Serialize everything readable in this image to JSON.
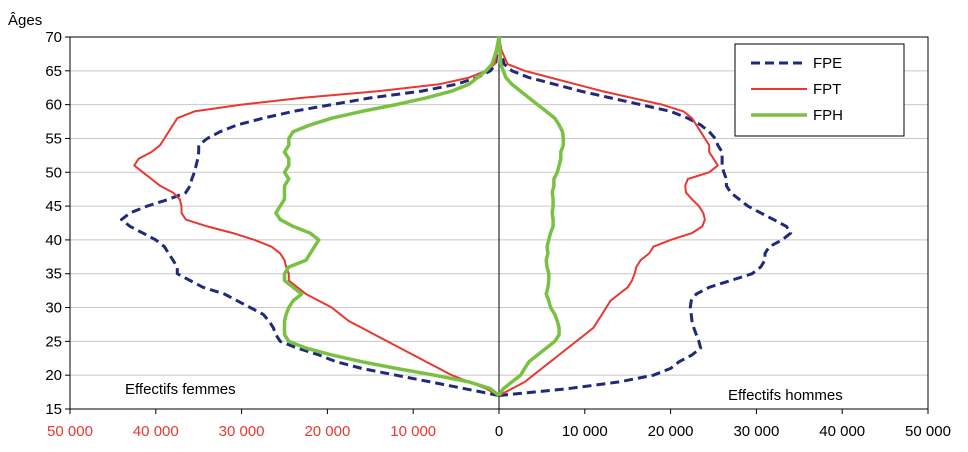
{
  "chart_data": {
    "type": "line",
    "title": "",
    "y_axis": {
      "label": "Âges",
      "min": 15,
      "max": 70,
      "step": 5,
      "tick_labels": [
        "15",
        "20",
        "25",
        "30",
        "35",
        "40",
        "45",
        "50",
        "55",
        "60",
        "65",
        "70"
      ]
    },
    "x_axis": {
      "min": -50000,
      "max": 50000,
      "step": 10000,
      "left_tick_labels": [
        "50 000",
        "40 000",
        "30 000",
        "20 000",
        "10 000"
      ],
      "zero_label": "0",
      "right_tick_labels": [
        "10 000",
        "20 000",
        "30 000",
        "40 000",
        "50 000"
      ]
    },
    "annotations": {
      "left": "Effectifs femmes",
      "right": "Effectifs hommes"
    },
    "legend": {
      "position": "top-right"
    },
    "colors": {
      "FPE": "#1f2a7a",
      "FPT": "#e8382f",
      "FPH": "#7ac143",
      "left_ticks": "#e8382f",
      "grid": "#c8c8c8"
    },
    "series": [
      {
        "name": "FPE",
        "style": "dashed",
        "women": [
          [
            17,
            0
          ],
          [
            18,
            4000
          ],
          [
            19,
            8000
          ],
          [
            20,
            12000
          ],
          [
            21,
            16000
          ],
          [
            22,
            19000
          ],
          [
            23,
            21000
          ],
          [
            24,
            23500
          ],
          [
            25,
            25500
          ],
          [
            26,
            26000
          ],
          [
            27,
            26300
          ],
          [
            28,
            26800
          ],
          [
            29,
            27500
          ],
          [
            30,
            29000
          ],
          [
            31,
            30500
          ],
          [
            32,
            32000
          ],
          [
            33,
            34500
          ],
          [
            34,
            36000
          ],
          [
            35,
            37500
          ],
          [
            36,
            37500
          ],
          [
            37,
            38000
          ],
          [
            38,
            38500
          ],
          [
            39,
            39000
          ],
          [
            40,
            40000
          ],
          [
            41,
            41500
          ],
          [
            42,
            43000
          ],
          [
            43,
            44000
          ],
          [
            44,
            43000
          ],
          [
            45,
            41000
          ],
          [
            46,
            38500
          ],
          [
            47,
            36500
          ],
          [
            48,
            36000
          ],
          [
            49,
            35800
          ],
          [
            50,
            35500
          ],
          [
            51,
            35300
          ],
          [
            52,
            35100
          ],
          [
            53,
            35000
          ],
          [
            54,
            35000
          ],
          [
            55,
            34000
          ],
          [
            56,
            32500
          ],
          [
            57,
            30500
          ],
          [
            58,
            27500
          ],
          [
            59,
            24000
          ],
          [
            60,
            19500
          ],
          [
            61,
            15000
          ],
          [
            62,
            9000
          ],
          [
            63,
            5000
          ],
          [
            64,
            2500
          ],
          [
            65,
            1000
          ],
          [
            66,
            400
          ],
          [
            68,
            200
          ],
          [
            70,
            0
          ]
        ],
        "men": [
          [
            17,
            0
          ],
          [
            18,
            8000
          ],
          [
            19,
            14000
          ],
          [
            20,
            18000
          ],
          [
            21,
            20000
          ],
          [
            22,
            21000
          ],
          [
            23,
            22500
          ],
          [
            24,
            23500
          ],
          [
            25,
            23300
          ],
          [
            26,
            23000
          ],
          [
            27,
            22700
          ],
          [
            28,
            22500
          ],
          [
            29,
            22400
          ],
          [
            30,
            22300
          ],
          [
            31,
            22400
          ],
          [
            32,
            23000
          ],
          [
            33,
            24500
          ],
          [
            34,
            27000
          ],
          [
            35,
            29500
          ],
          [
            36,
            30500
          ],
          [
            37,
            31000
          ],
          [
            38,
            31000
          ],
          [
            39,
            31500
          ],
          [
            40,
            33000
          ],
          [
            41,
            34000
          ],
          [
            42,
            33500
          ],
          [
            43,
            32000
          ],
          [
            44,
            30500
          ],
          [
            45,
            29000
          ],
          [
            46,
            28000
          ],
          [
            47,
            27000
          ],
          [
            48,
            26500
          ],
          [
            49,
            26500
          ],
          [
            50,
            26200
          ],
          [
            51,
            26000
          ],
          [
            52,
            26000
          ],
          [
            53,
            26000
          ],
          [
            54,
            25500
          ],
          [
            55,
            25200
          ],
          [
            56,
            24500
          ],
          [
            57,
            23500
          ],
          [
            58,
            22000
          ],
          [
            59,
            20000
          ],
          [
            60,
            16500
          ],
          [
            61,
            13000
          ],
          [
            62,
            9500
          ],
          [
            63,
            6500
          ],
          [
            64,
            3500
          ],
          [
            65,
            1500
          ],
          [
            66,
            600
          ],
          [
            68,
            200
          ],
          [
            70,
            0
          ]
        ]
      },
      {
        "name": "FPT",
        "style": "solid",
        "women": [
          [
            17,
            0
          ],
          [
            18,
            1500
          ],
          [
            19,
            3500
          ],
          [
            20,
            5500
          ],
          [
            21,
            7000
          ],
          [
            22,
            8500
          ],
          [
            23,
            10000
          ],
          [
            24,
            11500
          ],
          [
            25,
            13000
          ],
          [
            26,
            14500
          ],
          [
            27,
            16000
          ],
          [
            28,
            17500
          ],
          [
            29,
            18500
          ],
          [
            30,
            19500
          ],
          [
            31,
            21000
          ],
          [
            32,
            22500
          ],
          [
            33,
            23500
          ],
          [
            34,
            24500
          ],
          [
            35,
            24500
          ],
          [
            36,
            24800
          ],
          [
            37,
            25000
          ],
          [
            38,
            25500
          ],
          [
            39,
            26500
          ],
          [
            40,
            28500
          ],
          [
            41,
            31000
          ],
          [
            42,
            34000
          ],
          [
            43,
            36500
          ],
          [
            44,
            37000
          ],
          [
            45,
            37000
          ],
          [
            46,
            37200
          ],
          [
            47,
            38000
          ],
          [
            48,
            39500
          ],
          [
            49,
            40500
          ],
          [
            50,
            41500
          ],
          [
            51,
            42500
          ],
          [
            52,
            42000
          ],
          [
            53,
            40500
          ],
          [
            54,
            39500
          ],
          [
            55,
            39000
          ],
          [
            56,
            38500
          ],
          [
            57,
            38000
          ],
          [
            58,
            37500
          ],
          [
            59,
            35500
          ],
          [
            60,
            30000
          ],
          [
            61,
            23000
          ],
          [
            62,
            14000
          ],
          [
            63,
            7000
          ],
          [
            64,
            3500
          ],
          [
            65,
            1500
          ],
          [
            66,
            500
          ],
          [
            68,
            200
          ],
          [
            70,
            0
          ]
        ],
        "men": [
          [
            17,
            0
          ],
          [
            18,
            1500
          ],
          [
            19,
            3000
          ],
          [
            20,
            4000
          ],
          [
            21,
            5000
          ],
          [
            22,
            6000
          ],
          [
            23,
            7000
          ],
          [
            24,
            8000
          ],
          [
            25,
            9000
          ],
          [
            26,
            10000
          ],
          [
            27,
            11000
          ],
          [
            28,
            11500
          ],
          [
            29,
            12000
          ],
          [
            30,
            12500
          ],
          [
            31,
            13000
          ],
          [
            32,
            14000
          ],
          [
            33,
            15000
          ],
          [
            34,
            15500
          ],
          [
            35,
            15800
          ],
          [
            36,
            16000
          ],
          [
            37,
            16500
          ],
          [
            38,
            17500
          ],
          [
            39,
            18000
          ],
          [
            40,
            20000
          ],
          [
            41,
            22500
          ],
          [
            42,
            23700
          ],
          [
            43,
            24000
          ],
          [
            44,
            23800
          ],
          [
            45,
            23300
          ],
          [
            46,
            22500
          ],
          [
            47,
            21800
          ],
          [
            48,
            21700
          ],
          [
            49,
            22000
          ],
          [
            50,
            24500
          ],
          [
            51,
            25500
          ],
          [
            52,
            25000
          ],
          [
            53,
            24500
          ],
          [
            54,
            24500
          ],
          [
            55,
            24000
          ],
          [
            56,
            23500
          ],
          [
            57,
            23000
          ],
          [
            58,
            22500
          ],
          [
            59,
            21500
          ],
          [
            60,
            19000
          ],
          [
            61,
            15500
          ],
          [
            62,
            12000
          ],
          [
            63,
            9000
          ],
          [
            64,
            6000
          ],
          [
            65,
            3000
          ],
          [
            66,
            1000
          ],
          [
            68,
            300
          ],
          [
            70,
            0
          ]
        ]
      },
      {
        "name": "FPH",
        "style": "solid",
        "women": [
          [
            17,
            0
          ],
          [
            18,
            1000
          ],
          [
            19,
            3500
          ],
          [
            20,
            7500
          ],
          [
            21,
            12000
          ],
          [
            22,
            16000
          ],
          [
            23,
            19500
          ],
          [
            24,
            22500
          ],
          [
            25,
            24500
          ],
          [
            26,
            25000
          ],
          [
            27,
            25000
          ],
          [
            28,
            25000
          ],
          [
            29,
            24800
          ],
          [
            30,
            24500
          ],
          [
            31,
            24000
          ],
          [
            32,
            23000
          ],
          [
            33,
            24000
          ],
          [
            34,
            25000
          ],
          [
            35,
            25000
          ],
          [
            36,
            24500
          ],
          [
            37,
            22500
          ],
          [
            38,
            22000
          ],
          [
            39,
            21500
          ],
          [
            40,
            21000
          ],
          [
            41,
            22000
          ],
          [
            42,
            24000
          ],
          [
            43,
            25500
          ],
          [
            44,
            26000
          ],
          [
            45,
            25500
          ],
          [
            46,
            25000
          ],
          [
            47,
            25000
          ],
          [
            48,
            25000
          ],
          [
            49,
            24500
          ],
          [
            50,
            25000
          ],
          [
            51,
            24500
          ],
          [
            52,
            24500
          ],
          [
            53,
            25000
          ],
          [
            54,
            24500
          ],
          [
            55,
            24500
          ],
          [
            56,
            24000
          ],
          [
            57,
            22000
          ],
          [
            58,
            19500
          ],
          [
            59,
            16000
          ],
          [
            60,
            12000
          ],
          [
            61,
            8500
          ],
          [
            62,
            5500
          ],
          [
            63,
            3500
          ],
          [
            64,
            2500
          ],
          [
            65,
            1500
          ],
          [
            66,
            800
          ],
          [
            68,
            300
          ],
          [
            70,
            0
          ]
        ],
        "men": [
          [
            17,
            0
          ],
          [
            18,
            500
          ],
          [
            19,
            1500
          ],
          [
            20,
            2500
          ],
          [
            21,
            3000
          ],
          [
            22,
            3500
          ],
          [
            23,
            4500
          ],
          [
            24,
            5500
          ],
          [
            25,
            6500
          ],
          [
            26,
            7000
          ],
          [
            27,
            7000
          ],
          [
            28,
            6800
          ],
          [
            29,
            6500
          ],
          [
            30,
            6000
          ],
          [
            31,
            5800
          ],
          [
            32,
            5500
          ],
          [
            33,
            5700
          ],
          [
            34,
            5800
          ],
          [
            35,
            5800
          ],
          [
            36,
            5600
          ],
          [
            37,
            5500
          ],
          [
            38,
            5700
          ],
          [
            39,
            5600
          ],
          [
            40,
            5800
          ],
          [
            41,
            6000
          ],
          [
            42,
            6300
          ],
          [
            43,
            6300
          ],
          [
            44,
            6200
          ],
          [
            45,
            6300
          ],
          [
            46,
            6300
          ],
          [
            47,
            6200
          ],
          [
            48,
            6400
          ],
          [
            49,
            6400
          ],
          [
            50,
            6800
          ],
          [
            51,
            7000
          ],
          [
            52,
            7200
          ],
          [
            53,
            7200
          ],
          [
            54,
            7500
          ],
          [
            55,
            7500
          ],
          [
            56,
            7400
          ],
          [
            57,
            7000
          ],
          [
            58,
            6500
          ],
          [
            59,
            5500
          ],
          [
            60,
            4500
          ],
          [
            61,
            3500
          ],
          [
            62,
            2500
          ],
          [
            63,
            1500
          ],
          [
            64,
            800
          ],
          [
            65,
            500
          ],
          [
            66,
            200
          ],
          [
            68,
            100
          ],
          [
            70,
            0
          ]
        ]
      }
    ]
  }
}
